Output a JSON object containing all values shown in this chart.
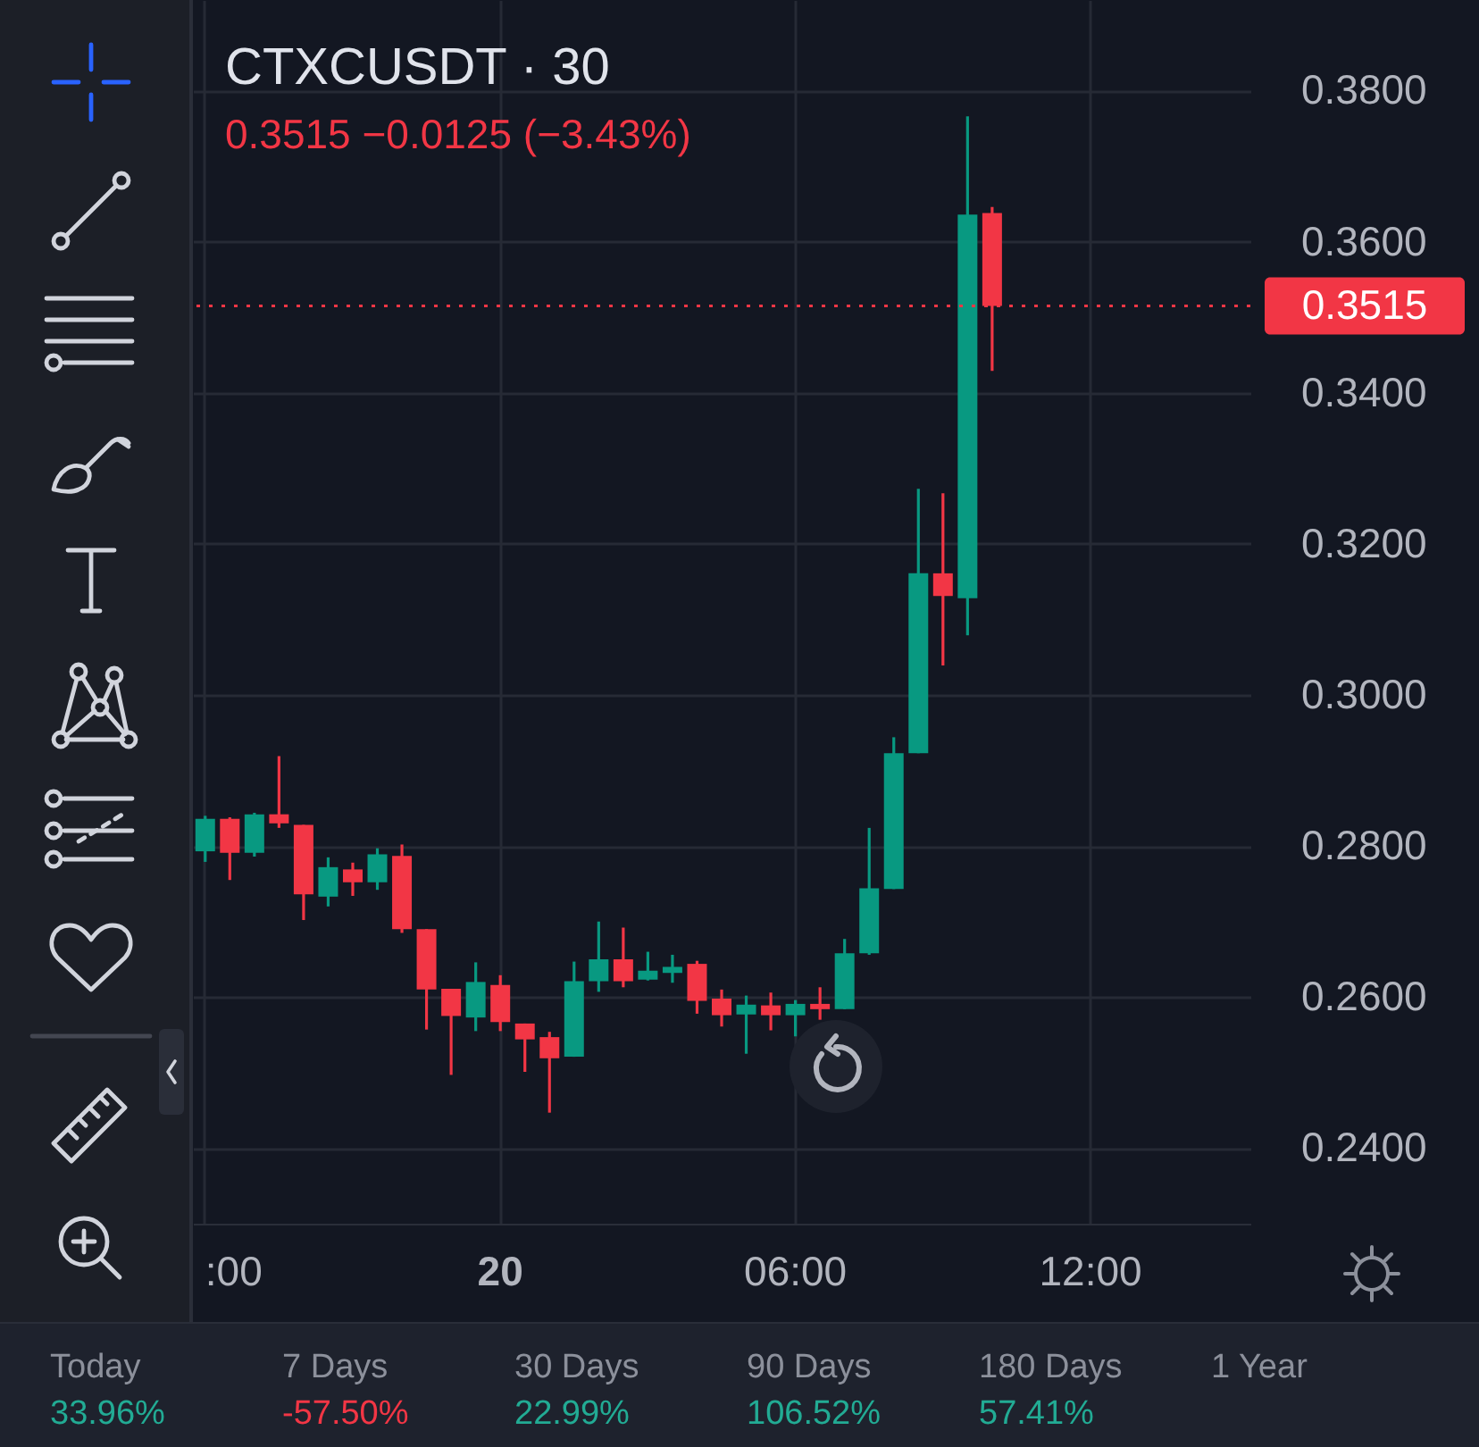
{
  "chart_data": {
    "type": "candlestick",
    "title": "CTXCUSDT · 30",
    "subtitle": "0.3515  −0.0125 (−3.43%)",
    "categories": [
      ":00",
      null,
      null,
      null,
      null,
      null,
      null,
      null,
      null,
      null,
      null,
      null,
      "20",
      null,
      null,
      null,
      null,
      null,
      null,
      null,
      null,
      null,
      null,
      null,
      "06:00",
      null,
      null,
      null,
      null,
      null,
      null,
      null,
      null,
      null,
      null,
      null,
      "12:00",
      null,
      null,
      null,
      null,
      null,
      null
    ],
    "ohlc": [
      [
        0.2793,
        0.284,
        0.2779,
        0.2836
      ],
      [
        0.2836,
        0.2838,
        0.2755,
        0.2791
      ],
      [
        0.2791,
        0.2844,
        0.2786,
        0.2842
      ],
      [
        0.2842,
        0.2919,
        0.2824,
        0.283
      ],
      [
        0.2828,
        0.2828,
        0.2702,
        0.2736
      ],
      [
        0.2733,
        0.2785,
        0.272,
        0.2772
      ],
      [
        0.2769,
        0.2778,
        0.2734,
        0.2752
      ],
      [
        0.2752,
        0.2797,
        0.2742,
        0.2789
      ],
      [
        0.2787,
        0.2802,
        0.2685,
        0.269
      ],
      [
        0.269,
        0.269,
        0.2557,
        0.261
      ],
      [
        0.2611,
        0.2611,
        0.2497,
        0.2575
      ],
      [
        0.2573,
        0.2646,
        0.2555,
        0.262
      ],
      [
        0.2616,
        0.2629,
        0.2555,
        0.2567
      ],
      [
        0.2565,
        0.2565,
        0.2501,
        0.2544
      ],
      [
        0.2547,
        0.2554,
        0.2447,
        0.2519
      ],
      [
        0.2521,
        0.2647,
        0.2521,
        0.2621
      ],
      [
        0.2621,
        0.27,
        0.2607,
        0.265
      ],
      [
        0.265,
        0.2692,
        0.2613,
        0.2621
      ],
      [
        0.2623,
        0.266,
        0.2622,
        0.2635
      ],
      [
        0.2632,
        0.2656,
        0.2619,
        0.264
      ],
      [
        0.2644,
        0.2648,
        0.2578,
        0.2595
      ],
      [
        0.2598,
        0.261,
        0.2561,
        0.2576
      ],
      [
        0.2577,
        0.2602,
        0.2525,
        0.259
      ],
      [
        0.2589,
        0.2606,
        0.2556,
        0.2576
      ],
      [
        0.2576,
        0.2596,
        0.2548,
        0.2591
      ],
      [
        0.2591,
        0.2613,
        0.257,
        0.2584
      ],
      [
        0.2584,
        0.2677,
        0.2584,
        0.2658
      ],
      [
        0.2658,
        0.2824,
        0.2656,
        0.2744
      ],
      [
        0.2743,
        0.2944,
        0.2743,
        0.2923
      ],
      [
        0.2923,
        0.3273,
        0.2923,
        0.3161
      ],
      [
        0.3161,
        0.3267,
        0.3039,
        0.3131
      ],
      [
        0.3128,
        0.3766,
        0.3079,
        0.3636
      ],
      [
        0.3638,
        0.3646,
        0.3429,
        0.3515
      ],
      null,
      null,
      null,
      null,
      null,
      null,
      null,
      null,
      null,
      null
    ],
    "colors": [
      "#089981",
      "#f23645",
      "#089981",
      "#f23645",
      "#f23645",
      "#089981",
      "#f23645",
      "#089981",
      "#f23645",
      "#f23645",
      "#f23645",
      "#089981",
      "#f23645",
      "#f23645",
      "#f23645",
      "#089981",
      "#089981",
      "#f23645",
      "#089981",
      "#089981",
      "#f23645",
      "#f23645",
      "#089981",
      "#f23645",
      "#089981",
      "#f23645",
      "#089981",
      "#089981",
      "#089981",
      "#089981",
      "#f23645",
      "#089981",
      "#f23645",
      null,
      null,
      null,
      null,
      null,
      null,
      null,
      null,
      null,
      null
    ],
    "ylim": [
      0.23,
      0.392
    ],
    "yticks": [
      {
        "value": 0.24,
        "label": "0.2400"
      },
      {
        "value": 0.26,
        "label": "0.2600"
      },
      {
        "value": 0.28,
        "label": "0.2800"
      },
      {
        "value": 0.3,
        "label": "0.3000"
      },
      {
        "value": 0.32,
        "label": "0.3200"
      },
      {
        "value": 0.34,
        "label": "0.3400"
      },
      {
        "value": 0.36,
        "label": "0.3600"
      },
      {
        "value": 0.38,
        "label": "0.3800"
      }
    ],
    "grid": true,
    "ref_lines": [
      {
        "axis": "y",
        "value": 0.3515,
        "label": "0.3515",
        "color": "#f23645",
        "line_style": "dotted"
      }
    ],
    "annotations": [
      "Today",
      "33.96%",
      "7 Days",
      "-57.50%",
      "30 Days",
      "22.99%",
      "90 Days",
      "106.52%",
      "180 Days",
      "57.41%",
      "1 Year"
    ]
  }
}
